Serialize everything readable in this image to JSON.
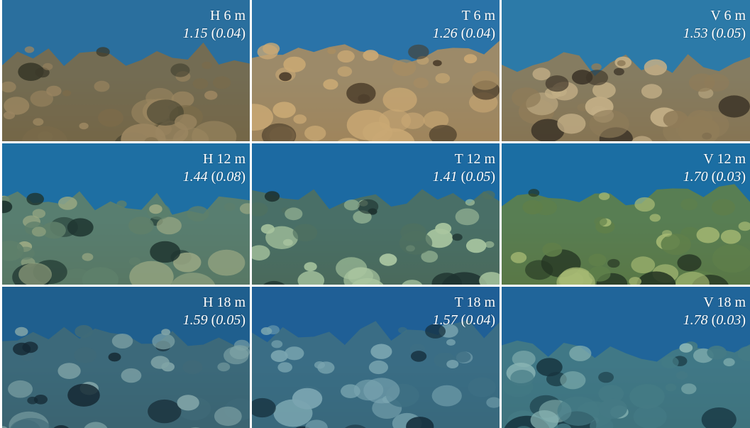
{
  "panels": [
    {
      "site": "H",
      "depth": "6 m",
      "value": "1.15",
      "sd": "0.04",
      "palette": {
        "water": "#2a6f9e",
        "reef": "#7b6b4a",
        "coral": "#9a8560",
        "shadow": "#3b3a2a"
      }
    },
    {
      "site": "T",
      "depth": "6 m",
      "value": "1.26",
      "sd": "0.04",
      "palette": {
        "water": "#2a73a8",
        "reef": "#a88d62",
        "coral": "#c9a874",
        "shadow": "#4a3c2a"
      }
    },
    {
      "site": "V",
      "depth": "6 m",
      "value": "1.53",
      "sd": "0.05",
      "palette": {
        "water": "#2c7aa8",
        "reef": "#8f7c59",
        "coral": "#c2ae86",
        "shadow": "#3c3428"
      }
    },
    {
      "site": "H",
      "depth": "12 m",
      "value": "1.44",
      "sd": "0.08",
      "palette": {
        "water": "#1e6fa3",
        "reef": "#5e7f6a",
        "coral": "#9aa883",
        "shadow": "#1f3530"
      }
    },
    {
      "site": "T",
      "depth": "12 m",
      "value": "1.41",
      "sd": "0.05",
      "palette": {
        "water": "#1c6aa2",
        "reef": "#4f7060",
        "coral": "#a9c6a0",
        "shadow": "#1e3330"
      }
    },
    {
      "site": "V",
      "depth": "12 m",
      "value": "1.70",
      "sd": "0.03",
      "palette": {
        "water": "#1b6ea3",
        "reef": "#5f7f4a",
        "coral": "#a7ba74",
        "shadow": "#233322"
      }
    },
    {
      "site": "H",
      "depth": "18 m",
      "value": "1.59",
      "sd": "0.05",
      "palette": {
        "water": "#1f5f8e",
        "reef": "#3f6a78",
        "coral": "#7fa3a6",
        "shadow": "#142833"
      }
    },
    {
      "site": "T",
      "depth": "18 m",
      "value": "1.57",
      "sd": "0.04",
      "palette": {
        "water": "#1f5f96",
        "reef": "#3d6f83",
        "coral": "#7aa5b0",
        "shadow": "#16303e"
      }
    },
    {
      "site": "V",
      "depth": "18 m",
      "value": "1.78",
      "sd": "0.03",
      "palette": {
        "water": "#20659a",
        "reef": "#447a84",
        "coral": "#8ab5b4",
        "shadow": "#173540"
      }
    }
  ]
}
